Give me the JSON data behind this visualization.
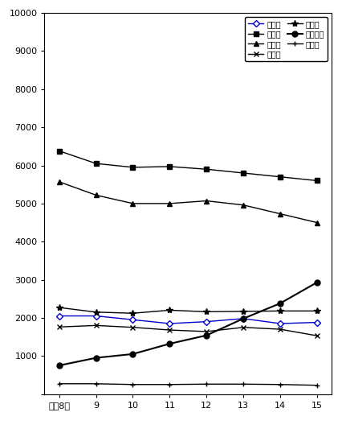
{
  "x_labels": [
    "平成8年",
    "9",
    "10",
    "11",
    "12",
    "13",
    "14",
    "15"
  ],
  "x_values": [
    8,
    9,
    10,
    11,
    12,
    13,
    14,
    15
  ],
  "series": [
    {
      "label": "農業科",
      "color": "#0000cc",
      "marker": "D",
      "marker_size": 4,
      "marker_facecolor": "white",
      "marker_edgecolor": "#0000cc",
      "linewidth": 1.0,
      "values": [
        2050,
        2050,
        1950,
        1850,
        1900,
        1980,
        1850,
        1880
      ]
    },
    {
      "label": "工業科",
      "color": "#000000",
      "marker": "s",
      "marker_size": 4,
      "marker_facecolor": "#000000",
      "marker_edgecolor": "#000000",
      "linewidth": 1.0,
      "values": [
        6380,
        6050,
        5950,
        5970,
        5900,
        5800,
        5700,
        5600
      ]
    },
    {
      "label": "商業科",
      "color": "#000000",
      "marker": "^",
      "marker_size": 4,
      "marker_facecolor": "#000000",
      "marker_edgecolor": "#000000",
      "linewidth": 1.0,
      "values": [
        5570,
        5220,
        5000,
        5000,
        5070,
        4960,
        4730,
        4500
      ]
    },
    {
      "label": "水産科",
      "color": "#000000",
      "marker": "x",
      "marker_size": 5,
      "marker_facecolor": "#000000",
      "marker_edgecolor": "#000000",
      "linewidth": 1.0,
      "values": [
        1760,
        1800,
        1750,
        1680,
        1640,
        1750,
        1700,
        1530
      ]
    },
    {
      "label": "家庭科",
      "color": "#000000",
      "marker": "*",
      "marker_size": 6,
      "marker_facecolor": "#000000",
      "marker_edgecolor": "#000000",
      "linewidth": 1.0,
      "values": [
        2270,
        2150,
        2120,
        2200,
        2160,
        2170,
        2180,
        2180
      ]
    },
    {
      "label": "総合学科",
      "color": "#000000",
      "marker": "o",
      "marker_size": 5,
      "marker_facecolor": "#000000",
      "marker_edgecolor": "#000000",
      "linewidth": 1.5,
      "values": [
        750,
        950,
        1050,
        1320,
        1540,
        1980,
        2380,
        2930
      ]
    },
    {
      "label": "その他",
      "color": "#000000",
      "marker": "+",
      "marker_size": 5,
      "marker_facecolor": "#000000",
      "marker_edgecolor": "#000000",
      "linewidth": 1.0,
      "values": [
        270,
        270,
        250,
        250,
        260,
        260,
        250,
        230
      ]
    }
  ],
  "ylim": [
    0,
    10000
  ],
  "yticks": [
    0,
    1000,
    2000,
    3000,
    4000,
    5000,
    6000,
    7000,
    8000,
    9000,
    10000
  ],
  "background_color": "#ffffff",
  "legend_order": [
    0,
    1,
    2,
    3,
    4,
    5,
    6
  ]
}
